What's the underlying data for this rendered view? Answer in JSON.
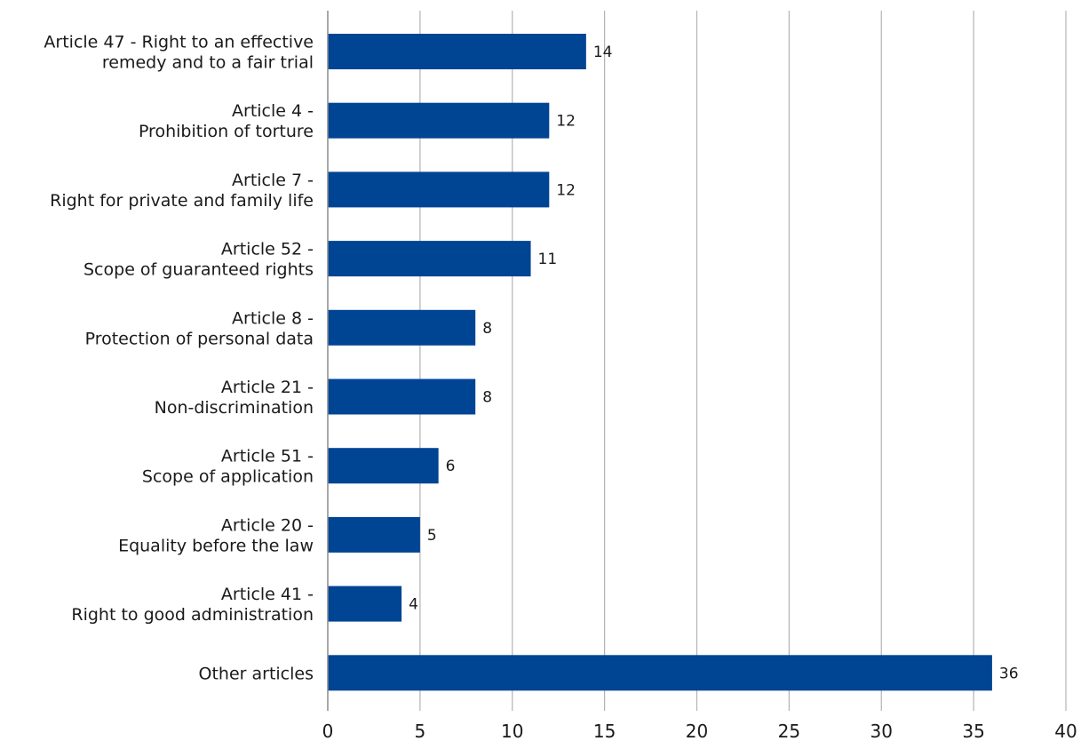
{
  "chart_data": {
    "type": "bar",
    "orientation": "horizontal",
    "title": "",
    "xlabel": "",
    "ylabel": "",
    "xlim": [
      0,
      40
    ],
    "x_ticks": [
      0,
      5,
      10,
      15,
      20,
      25,
      30,
      35,
      40
    ],
    "grid": "vertical",
    "bar_color": "#004494",
    "categories": [
      [
        "Article 47 - Right to an effective",
        "remedy and to a fair trial"
      ],
      [
        "Article 4 -",
        "Prohibition of torture"
      ],
      [
        "Article 7 -",
        "Right for private and family life"
      ],
      [
        "Article 52 -",
        "Scope of guaranteed rights"
      ],
      [
        "Article 8 -",
        "Protection of personal data"
      ],
      [
        "Article 21 -",
        "Non-discrimination"
      ],
      [
        "Article 51 -",
        "Scope of application"
      ],
      [
        "Article 20 -",
        "Equality before the law"
      ],
      [
        "Article 41 -",
        "Right to good administration"
      ],
      [
        "Other articles"
      ]
    ],
    "values": [
      14,
      12,
      12,
      11,
      8,
      8,
      6,
      5,
      4,
      36
    ]
  }
}
